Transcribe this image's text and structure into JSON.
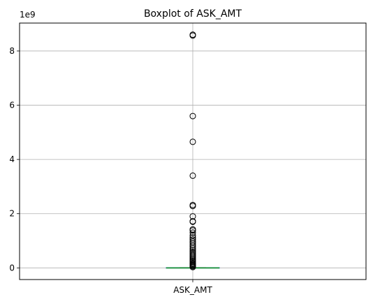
{
  "chart_data": {
    "type": "box",
    "title": "Boxplot of ASK_AMT",
    "categories": [
      "ASK_AMT"
    ],
    "y_scale_label": "1e9",
    "ylim": [
      -0.43,
      9.03
    ],
    "y_ticks": [
      0,
      2,
      4,
      6,
      8
    ],
    "grid": true,
    "median": 0.0,
    "whisker_low": 0.0,
    "whisker_high": 0.005,
    "q1": 0.0,
    "q3": 0.0,
    "outliers": [
      8.6,
      8.57,
      5.6,
      4.65,
      3.4,
      2.32,
      2.28,
      1.9,
      1.72,
      1.7,
      1.42,
      1.38,
      1.3,
      1.2,
      1.12,
      1.05,
      0.98,
      0.92,
      0.85,
      0.78,
      0.72,
      0.66,
      0.6,
      0.55,
      0.5,
      0.45,
      0.4,
      0.35,
      0.3,
      0.26,
      0.22,
      0.18,
      0.15,
      0.12,
      0.09,
      0.06,
      0.03
    ],
    "colors": {
      "box": "#1f77b4",
      "median": "#2ca02c",
      "grid": "#b0b0b0",
      "outlier": "#000000"
    }
  }
}
